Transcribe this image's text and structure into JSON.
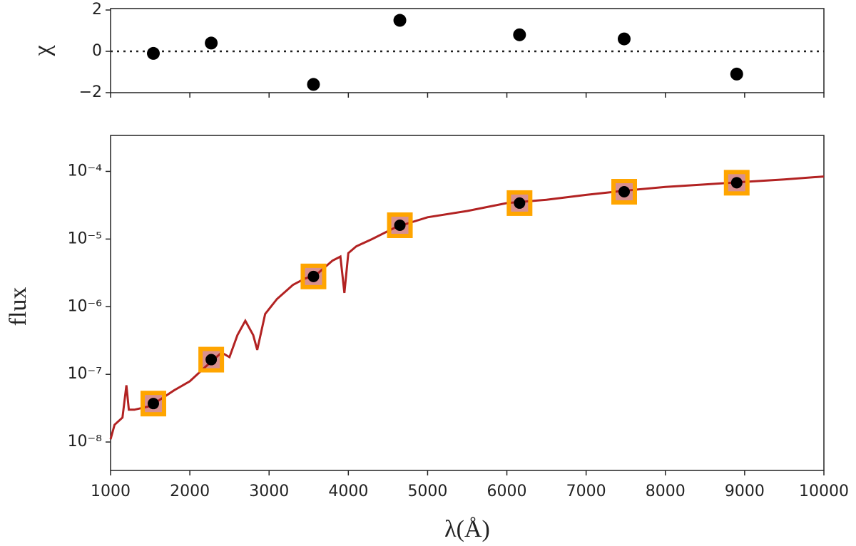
{
  "chart_data": [
    {
      "type": "scatter",
      "ylabel": "χ",
      "x": [
        1540,
        2270,
        3560,
        4650,
        6160,
        7480,
        8900
      ],
      "values": [
        -0.1,
        0.4,
        -1.6,
        1.5,
        0.8,
        0.6,
        -1.1
      ],
      "color": "#000000",
      "xlim": [
        1000,
        10000
      ],
      "xticks": [
        1000,
        2000,
        3000,
        4000,
        5000,
        6000,
        7000,
        8000,
        9000,
        10000
      ],
      "ylim": [
        -2,
        2.07
      ],
      "yticks": [
        {
          "value": -2,
          "label": "−2"
        },
        0,
        2
      ],
      "reference_line": 0
    },
    {
      "type": "sed",
      "xlabel": "λ(Å)",
      "ylabel": "flux",
      "yscale": "log",
      "xlim": [
        1000,
        10000
      ],
      "xticks": [
        1000,
        2000,
        3000,
        4000,
        5000,
        6000,
        7000,
        8000,
        9000,
        10000
      ],
      "ylim": [
        3.8e-09,
        0.00034
      ],
      "yticks": [
        {
          "value": 1e-08,
          "label": "10⁻⁸"
        },
        {
          "value": 1e-07,
          "label": "10⁻⁷"
        },
        {
          "value": 1e-06,
          "label": "10⁻⁶"
        },
        {
          "value": 1e-05,
          "label": "10⁻⁵"
        },
        {
          "value": 0.0001,
          "label": "10⁻⁴"
        }
      ],
      "series": [
        {
          "kind": "line",
          "color": "#b22222",
          "x": [
            1000,
            1050,
            1150,
            1200,
            1230,
            1300,
            1500,
            1800,
            2000,
            2200,
            2400,
            2500,
            2600,
            2700,
            2800,
            2850,
            2950,
            3100,
            3300,
            3450,
            3600,
            3800,
            3900,
            3950,
            4000,
            4100,
            4300,
            4600,
            5000,
            5500,
            6000,
            6500,
            7000,
            7500,
            8000,
            8500,
            9000,
            9500,
            10000
          ],
          "values": [
            1.1e-08,
            1.8e-08,
            2.3e-08,
            6.9e-08,
            3e-08,
            3e-08,
            3.4e-08,
            5.8e-08,
            7.9e-08,
            1.3e-07,
            2.1e-07,
            1.8e-07,
            3.8e-07,
            6.2e-07,
            3.8e-07,
            2.3e-07,
            7.8e-07,
            1.3e-06,
            2.1e-06,
            2.6e-06,
            3e-06,
            4.8e-06,
            5.5e-06,
            1.6e-06,
            6.2e-06,
            7.8e-06,
            1e-05,
            1.5e-05,
            2.1e-05,
            2.6e-05,
            3.4e-05,
            3.8e-05,
            4.5e-05,
            5.2e-05,
            5.9e-05,
            6.4e-05,
            7e-05,
            7.6e-05,
            8.4e-05
          ]
        },
        {
          "kind": "square",
          "color": "#ffa500",
          "x": [
            1540,
            2270,
            3560,
            4650,
            6160,
            7480,
            8900
          ],
          "values": [
            3.7e-08,
            1.65e-07,
            2.8e-06,
            1.6e-05,
            3.4e-05,
            5e-05,
            6.8e-05
          ]
        },
        {
          "kind": "circle",
          "color": "#000000",
          "x": [
            1540,
            2270,
            3560,
            4650,
            6160,
            7480,
            8900
          ],
          "values": [
            3.7e-08,
            1.65e-07,
            2.8e-06,
            1.6e-05,
            3.4e-05,
            5e-05,
            6.8e-05
          ]
        }
      ]
    }
  ]
}
